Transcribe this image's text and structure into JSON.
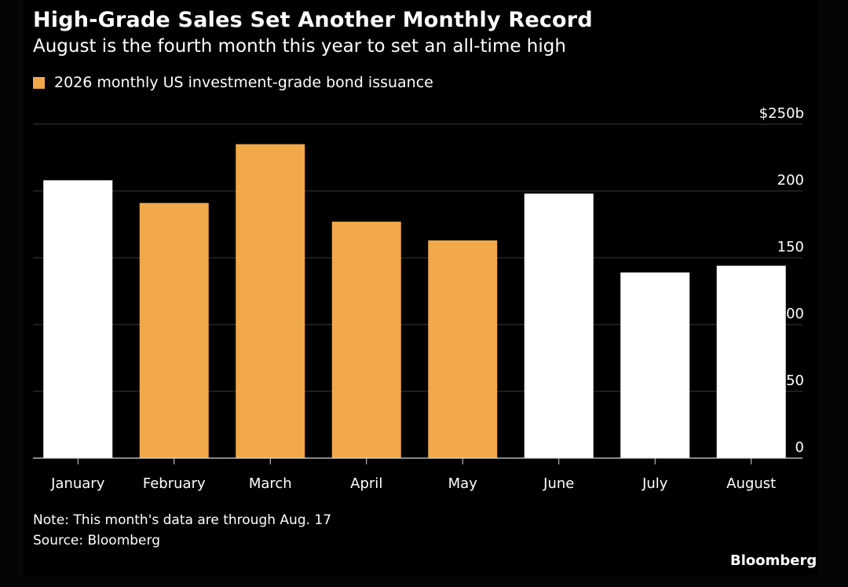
{
  "header": {
    "title": "High-Grade Sales Set Another Monthly Record",
    "subtitle": "August is the fourth month this year to set an all-time high"
  },
  "legend": {
    "label": "2026 monthly US investment-grade bond issuance",
    "color": "#F2A94A"
  },
  "footer": {
    "note": "Note: This month's data are through Aug. 17",
    "source": "Source: Bloomberg",
    "brand": "Bloomberg"
  },
  "colors": {
    "background": "#000000",
    "record_bar": "#F2A94A",
    "other_bar": "#FFFFFF",
    "grid": "#3A3A3A",
    "axis": "#D9D9D9"
  },
  "chart_data": {
    "type": "bar",
    "categories": [
      "January",
      "February",
      "March",
      "April",
      "May",
      "June",
      "July",
      "August"
    ],
    "values": [
      208,
      191,
      235,
      177,
      163,
      198,
      139,
      144
    ],
    "highlighted": [
      false,
      true,
      true,
      true,
      true,
      false,
      false,
      false
    ],
    "title": "High-Grade Sales Set Another Monthly Record",
    "subtitle": "August is the fourth month this year to set an all-time high",
    "xlabel": "",
    "ylabel": "",
    "ylim": [
      0,
      250
    ],
    "yticks": [
      0,
      50,
      100,
      150,
      200,
      250
    ],
    "ytick_labels": [
      "0",
      "50",
      "100",
      "150",
      "200",
      "$250b"
    ],
    "y_axis_side": "right",
    "grid": true,
    "legend_position": "top-left"
  }
}
